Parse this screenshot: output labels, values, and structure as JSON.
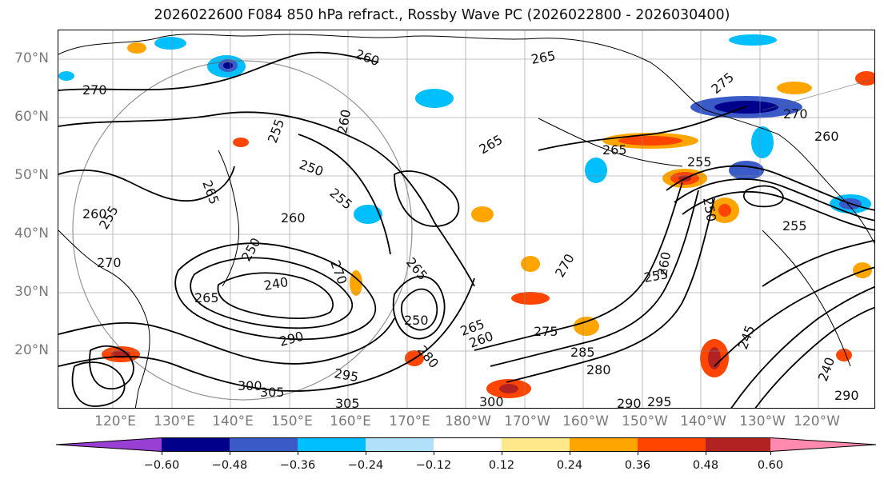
{
  "title": "2026022600 F084 850 hPa refract., Rossby Wave PC (2026022800 - 2026030400)",
  "lat_labels": [
    "70°N",
    "60°N",
    "50°N",
    "40°N",
    "30°N",
    "20°N"
  ],
  "lon_labels": [
    "120°E",
    "130°E",
    "140°E",
    "150°E",
    "160°E",
    "170°E",
    "180°W",
    "170°W",
    "160°W",
    "150°W",
    "140°W",
    "130°W",
    "120°W"
  ],
  "colorbar": {
    "ticks": [
      "−0.60",
      "−0.48",
      "−0.36",
      "−0.24",
      "−0.12",
      "0.12",
      "0.24",
      "0.36",
      "0.48",
      "0.60"
    ],
    "colors": [
      "#9a3fd4",
      "#00008b",
      "#3a5ac8",
      "#00bfff",
      "#b0e0fa",
      "#ffffff",
      "#ffe88a",
      "#ffa500",
      "#ff4500",
      "#b22222",
      "#ff8ab0"
    ]
  },
  "contour_labels": [
    {
      "text": "260"
    },
    {
      "text": "265"
    },
    {
      "text": "270"
    },
    {
      "text": "275"
    },
    {
      "text": "270"
    },
    {
      "text": "260"
    },
    {
      "text": "255"
    },
    {
      "text": "250"
    },
    {
      "text": "265"
    },
    {
      "text": "265"
    },
    {
      "text": "265"
    },
    {
      "text": "260"
    },
    {
      "text": "255"
    },
    {
      "text": "260"
    },
    {
      "text": "250"
    },
    {
      "text": "260"
    },
    {
      "text": "270"
    },
    {
      "text": "240"
    },
    {
      "text": "265"
    },
    {
      "text": "270"
    },
    {
      "text": "250"
    },
    {
      "text": "265"
    },
    {
      "text": "280"
    },
    {
      "text": "290"
    },
    {
      "text": "295"
    },
    {
      "text": "300"
    },
    {
      "text": "305"
    },
    {
      "text": "305"
    },
    {
      "text": "300"
    },
    {
      "text": "275"
    },
    {
      "text": "265"
    },
    {
      "text": "260"
    },
    {
      "text": "270"
    },
    {
      "text": "255"
    },
    {
      "text": "260"
    },
    {
      "text": "255"
    },
    {
      "text": "250"
    },
    {
      "text": "245"
    },
    {
      "text": "290"
    },
    {
      "text": "295"
    },
    {
      "text": "240"
    },
    {
      "text": "290"
    },
    {
      "text": "255"
    },
    {
      "text": "285"
    },
    {
      "text": "280"
    },
    {
      "text": "255"
    }
  ]
}
